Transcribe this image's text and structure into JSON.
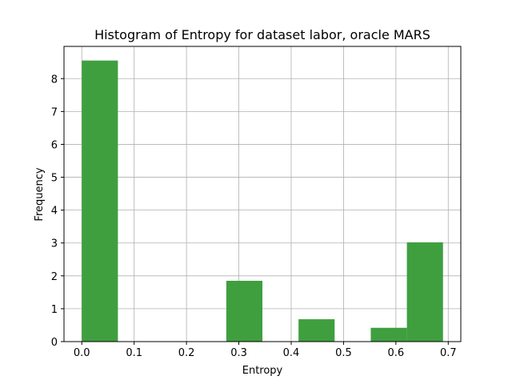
{
  "chart_data": {
    "type": "bar",
    "title": "Histogram of Entropy for dataset labor, oracle MARS",
    "xlabel": "Entropy",
    "ylabel": "Frequency",
    "xlim": [
      -0.034,
      0.724
    ],
    "ylim": [
      0,
      8.98
    ],
    "xticks": [
      0.0,
      0.1,
      0.2,
      0.3,
      0.4,
      0.5,
      0.6,
      0.7
    ],
    "xtick_labels": [
      "0.0",
      "0.1",
      "0.2",
      "0.3",
      "0.4",
      "0.5",
      "0.6",
      "0.7"
    ],
    "yticks": [
      0,
      1,
      2,
      3,
      4,
      5,
      6,
      7,
      8
    ],
    "ytick_labels": [
      "0",
      "1",
      "2",
      "3",
      "4",
      "5",
      "6",
      "7",
      "8"
    ],
    "grid": true,
    "bar_color": "#3f9f3f",
    "bins": [
      {
        "x0": 0.0,
        "x1": 0.069,
        "value": 8.55
      },
      {
        "x0": 0.069,
        "x1": 0.138,
        "value": 0
      },
      {
        "x0": 0.138,
        "x1": 0.207,
        "value": 0
      },
      {
        "x0": 0.207,
        "x1": 0.276,
        "value": 0
      },
      {
        "x0": 0.276,
        "x1": 0.345,
        "value": 1.85
      },
      {
        "x0": 0.345,
        "x1": 0.414,
        "value": 0
      },
      {
        "x0": 0.414,
        "x1": 0.483,
        "value": 0.68
      },
      {
        "x0": 0.483,
        "x1": 0.552,
        "value": 0
      },
      {
        "x0": 0.552,
        "x1": 0.621,
        "value": 0.42
      },
      {
        "x0": 0.621,
        "x1": 0.69,
        "value": 3.02
      }
    ]
  }
}
